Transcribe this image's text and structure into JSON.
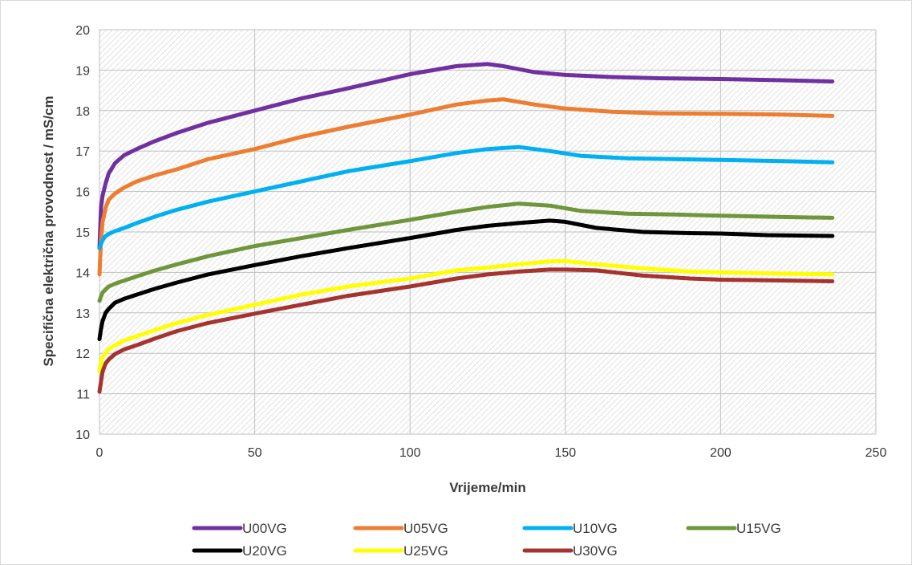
{
  "chart_data": {
    "type": "line",
    "title": "",
    "xlabel": "Vrijeme/min",
    "ylabel": "Specifična električna provodnost / mS/cm",
    "xlim": [
      0,
      250
    ],
    "ylim": [
      10,
      20
    ],
    "xticks": [
      "0",
      "50",
      "100",
      "150",
      "200",
      "250"
    ],
    "yticks": [
      "10",
      "11",
      "12",
      "13",
      "14",
      "15",
      "16",
      "17",
      "18",
      "19",
      "20"
    ],
    "grid": true,
    "legend_position": "bottom",
    "series": [
      {
        "name": "U00VG",
        "color": "#7030a0",
        "x": [
          0,
          0.5,
          1,
          2,
          3,
          5,
          8,
          12,
          18,
          25,
          35,
          50,
          65,
          80,
          100,
          115,
          125,
          130,
          140,
          150,
          165,
          180,
          200,
          220,
          236
        ],
        "y": [
          14.6,
          15.6,
          15.9,
          16.2,
          16.45,
          16.7,
          16.9,
          17.05,
          17.25,
          17.45,
          17.7,
          18.0,
          18.3,
          18.55,
          18.9,
          19.1,
          19.15,
          19.1,
          18.95,
          18.88,
          18.83,
          18.8,
          18.78,
          18.75,
          18.72
        ]
      },
      {
        "name": "U05VG",
        "color": "#ed7d31",
        "x": [
          0,
          0.5,
          1,
          2,
          3,
          5,
          8,
          12,
          18,
          25,
          35,
          50,
          65,
          80,
          100,
          115,
          125,
          130,
          140,
          150,
          165,
          180,
          200,
          220,
          236
        ],
        "y": [
          13.95,
          14.8,
          15.25,
          15.6,
          15.8,
          15.95,
          16.1,
          16.25,
          16.4,
          16.55,
          16.8,
          17.05,
          17.35,
          17.6,
          17.9,
          18.15,
          18.25,
          18.28,
          18.15,
          18.05,
          17.97,
          17.93,
          17.92,
          17.9,
          17.87
        ]
      },
      {
        "name": "U10VG",
        "color": "#00b0f0",
        "x": [
          0,
          0.5,
          1,
          2,
          3,
          5,
          8,
          12,
          18,
          25,
          35,
          50,
          65,
          80,
          100,
          115,
          125,
          135,
          145,
          155,
          170,
          185,
          200,
          220,
          236
        ],
        "y": [
          14.6,
          14.7,
          14.8,
          14.9,
          14.95,
          15.02,
          15.1,
          15.22,
          15.38,
          15.55,
          15.75,
          16.0,
          16.25,
          16.5,
          16.75,
          16.95,
          17.05,
          17.1,
          17.0,
          16.88,
          16.82,
          16.8,
          16.78,
          16.75,
          16.72
        ]
      },
      {
        "name": "U15VG",
        "color": "#70963c",
        "x": [
          0,
          0.5,
          1,
          2,
          3,
          5,
          8,
          12,
          18,
          25,
          35,
          50,
          65,
          80,
          100,
          115,
          125,
          135,
          145,
          155,
          170,
          185,
          200,
          220,
          236
        ],
        "y": [
          13.3,
          13.4,
          13.5,
          13.58,
          13.65,
          13.72,
          13.8,
          13.9,
          14.05,
          14.2,
          14.4,
          14.65,
          14.85,
          15.05,
          15.3,
          15.5,
          15.62,
          15.7,
          15.65,
          15.52,
          15.45,
          15.43,
          15.4,
          15.37,
          15.35
        ]
      },
      {
        "name": "U20VG",
        "color": "#000000",
        "x": [
          0,
          0.5,
          1,
          2,
          3,
          5,
          8,
          12,
          18,
          25,
          35,
          50,
          65,
          80,
          100,
          115,
          125,
          135,
          145,
          150,
          160,
          175,
          190,
          200,
          215,
          236
        ],
        "y": [
          12.35,
          12.6,
          12.8,
          13.0,
          13.1,
          13.25,
          13.35,
          13.45,
          13.6,
          13.75,
          13.95,
          14.18,
          14.4,
          14.6,
          14.85,
          15.05,
          15.15,
          15.22,
          15.28,
          15.25,
          15.1,
          15.0,
          14.97,
          14.96,
          14.92,
          14.9
        ]
      },
      {
        "name": "U25VG",
        "color": "#ffff00",
        "x": [
          0,
          0.5,
          1,
          2,
          3,
          5,
          8,
          12,
          18,
          25,
          35,
          50,
          65,
          80,
          100,
          115,
          125,
          135,
          145,
          150,
          160,
          175,
          190,
          200,
          220,
          236
        ],
        "y": [
          11.55,
          11.8,
          11.9,
          12.0,
          12.1,
          12.2,
          12.32,
          12.42,
          12.58,
          12.75,
          12.95,
          13.2,
          13.45,
          13.65,
          13.85,
          14.05,
          14.12,
          14.2,
          14.27,
          14.28,
          14.2,
          14.1,
          14.02,
          14.0,
          13.97,
          13.95
        ]
      },
      {
        "name": "U30VG",
        "color": "#a5342f",
        "x": [
          0,
          0.5,
          1,
          2,
          3,
          5,
          8,
          12,
          18,
          25,
          35,
          50,
          65,
          80,
          100,
          115,
          125,
          135,
          145,
          150,
          160,
          175,
          190,
          200,
          220,
          236
        ],
        "y": [
          11.05,
          11.3,
          11.55,
          11.75,
          11.85,
          11.98,
          12.1,
          12.2,
          12.37,
          12.55,
          12.75,
          12.98,
          13.2,
          13.42,
          13.65,
          13.85,
          13.95,
          14.02,
          14.07,
          14.07,
          14.05,
          13.92,
          13.85,
          13.82,
          13.8,
          13.78
        ]
      }
    ]
  }
}
